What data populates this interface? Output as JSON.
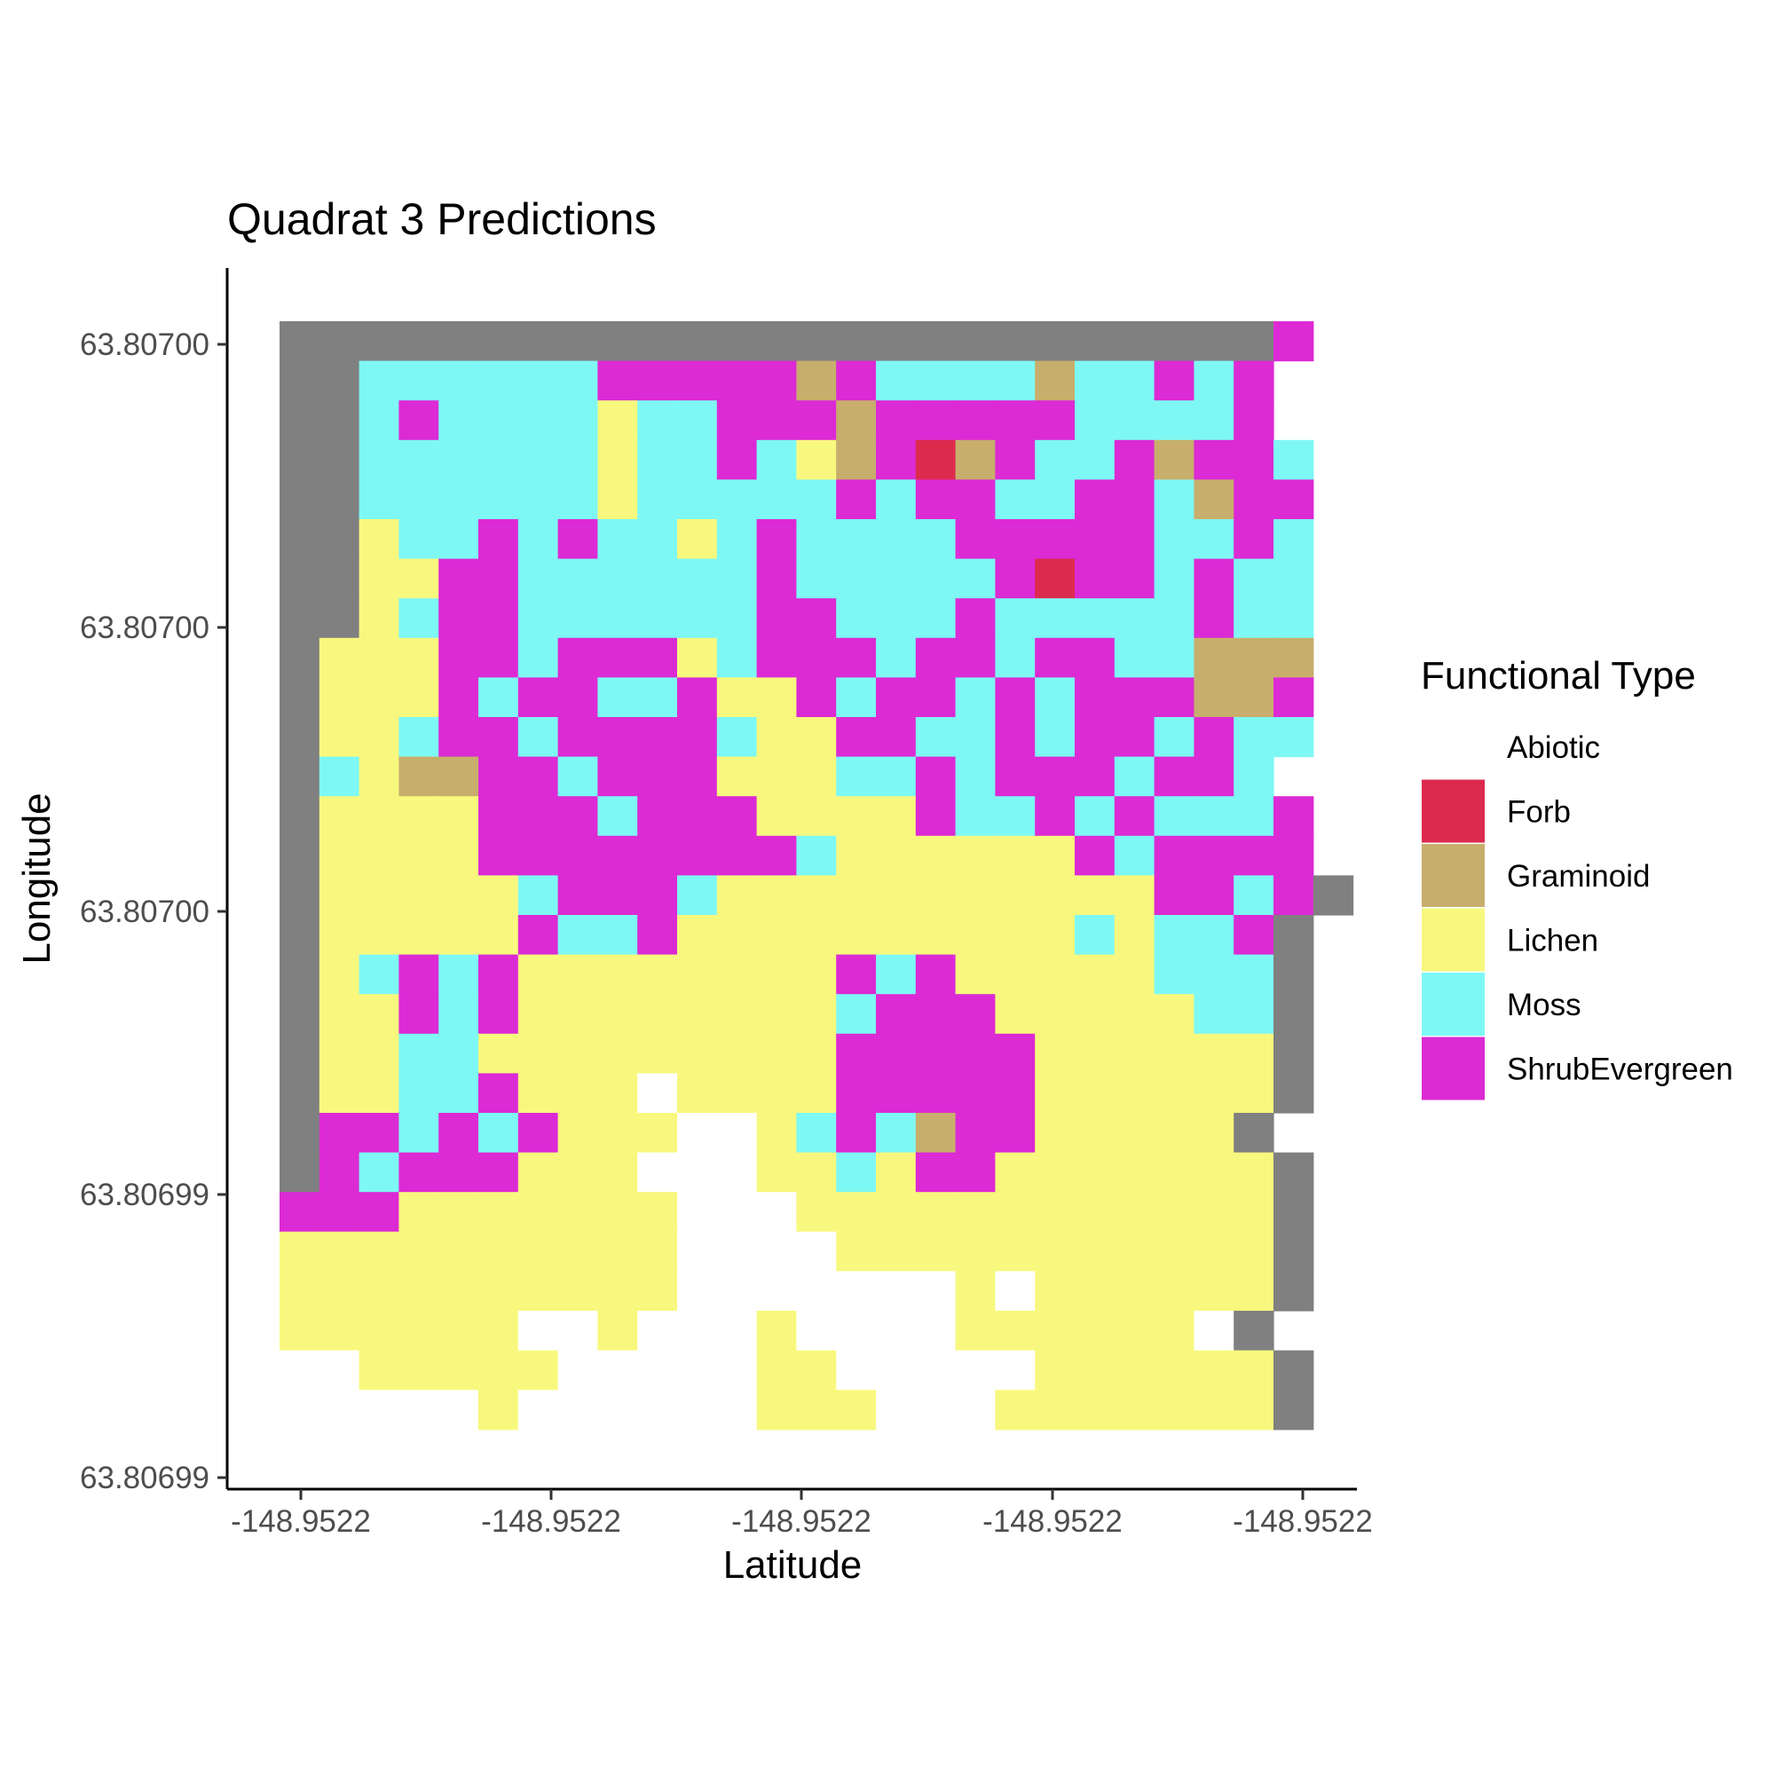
{
  "chart_data": {
    "type": "heatmap",
    "title": "Quadrat 3 Predictions",
    "xlabel": "Latitude",
    "ylabel": "Longitude",
    "x_tick_labels": [
      "-148.9522",
      "-148.9522",
      "-148.9522",
      "-148.9522",
      "-148.9522"
    ],
    "y_tick_labels": [
      "63.80700",
      "63.80700",
      "63.80700",
      "63.80699",
      "63.80699"
    ],
    "grid": false,
    "legend": {
      "title": "Functional Type",
      "position": "right",
      "entries": [
        {
          "label": "Abiotic",
          "code": "W",
          "color": "#FFFFFF"
        },
        {
          "label": "Forb",
          "code": "R",
          "color": "#DC2A4E"
        },
        {
          "label": "Graminoid",
          "code": "T",
          "color": "#C8AE6C"
        },
        {
          "label": "Lichen",
          "code": "L",
          "color": "#F8F87E"
        },
        {
          "label": "Moss",
          "code": "M",
          "color": "#7EF8F4"
        },
        {
          "label": "ShrubEvergreen",
          "code": "S",
          "color": "#DC2AD4"
        }
      ]
    },
    "na_color": "#808080",
    "cell_legend": "Rows top to bottom, columns left to right. W=Abiotic, R=Forb, T=Graminoid, L=Lichen, M=Moss, S=ShrubEvergreen, G=NA (grey).",
    "grid_cells": [
      "GGGGGGGGGGGGGGGGGGGGGGGGGS",
      "GGMMMMMMSSSSSTSMMMMTMMSMS",
      "GGMSMMMMLMMSSSTSSSSSMMMMS",
      "GGMMMMMMLMMSMLTSRTSMMSTSSM",
      "GGMMMMMMLMMMMMSMSSMMSSMTSS",
      "GGLMMSMSMMLMSMMMMSSSSSMMSM",
      "GGLLSSMMMMMMSMMMMMSRSSMSMM",
      "GGLMSSMMMMMMSSMMMSMMMMMSMM",
      "GLLLSSMSSSLMSSSMSSMSSMMTTT",
      "GLLLSMSSMMSLLSMSSMSMSSSTTS",
      "GLLMSSMSSSSMLLSSMMSMSSMSMM",
      "GMLTTSSMSSSLLLMMSMSSSMSSM",
      "GLLLLSSSMSSSLLLLSMMSMSMMMS",
      "GLLLLSSSSSSSSMLLLLLLSMSSSS",
      "GLLLLLMSSSMLLLLLLLLLLLSSMSG",
      "GLLLLLSMMSLLLLLLLLLLMLMMSG",
      "GLMSMSLLLLLLLLSMSLLLLLMMMG",
      "GLLSMSLLLLLLLLMSSSLLLLLMMG",
      "GLLMMLLLLLLLLLSSSSSLLLLLLG",
      "GLLMMSLLLWLLLLSSSSSLLLLLLG",
      "GSSMSMSLLLWWLMSMTSSLLLLLG",
      "GSMSSSLLLWWWLLMLSSLLLLLLLG",
      "SSSLLLLLLLWWWLLLLLLLLLLLLG",
      "LLLLLLLLLLWWWWLLLLLLLLLLLG",
      "LLLLLLLLLLWWWWWWWLWLLLLLLG",
      "LLLLLLWWLWWWLWWWWLLLLLLWG",
      "WWLLLLLWWWWWLLWWWWWLLLLLLG",
      "WWWWWLWWWWWWLLLWWWLLLLLLLG"
    ]
  }
}
